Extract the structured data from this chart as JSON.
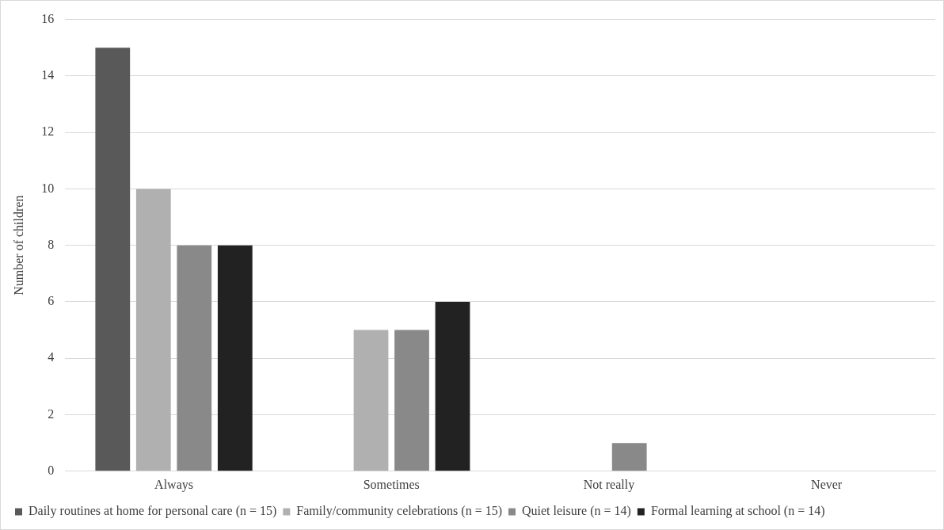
{
  "chart_data": {
    "type": "bar",
    "ylabel": "Number of children",
    "categories": [
      "Always",
      "Sometimes",
      "Not really",
      "Never"
    ],
    "series": [
      {
        "name": "Daily routines at home for personal care (n = 15)",
        "color": "#595959",
        "values": [
          15,
          0,
          0,
          0
        ]
      },
      {
        "name": "Family/community celebrations (n = 15)",
        "color": "#b0b0b0",
        "values": [
          10,
          5,
          0,
          0
        ]
      },
      {
        "name": "Quiet leisure (n = 14)",
        "color": "#898989",
        "values": [
          8,
          5,
          1,
          0
        ]
      },
      {
        "name": "Formal learning at school (n = 14)",
        "color": "#222222",
        "values": [
          8,
          6,
          0,
          0
        ]
      }
    ],
    "ylim": [
      0,
      16
    ],
    "yticks": [
      0,
      2,
      4,
      6,
      8,
      10,
      12,
      14,
      16
    ],
    "grid": "y",
    "legend": "bottom"
  }
}
